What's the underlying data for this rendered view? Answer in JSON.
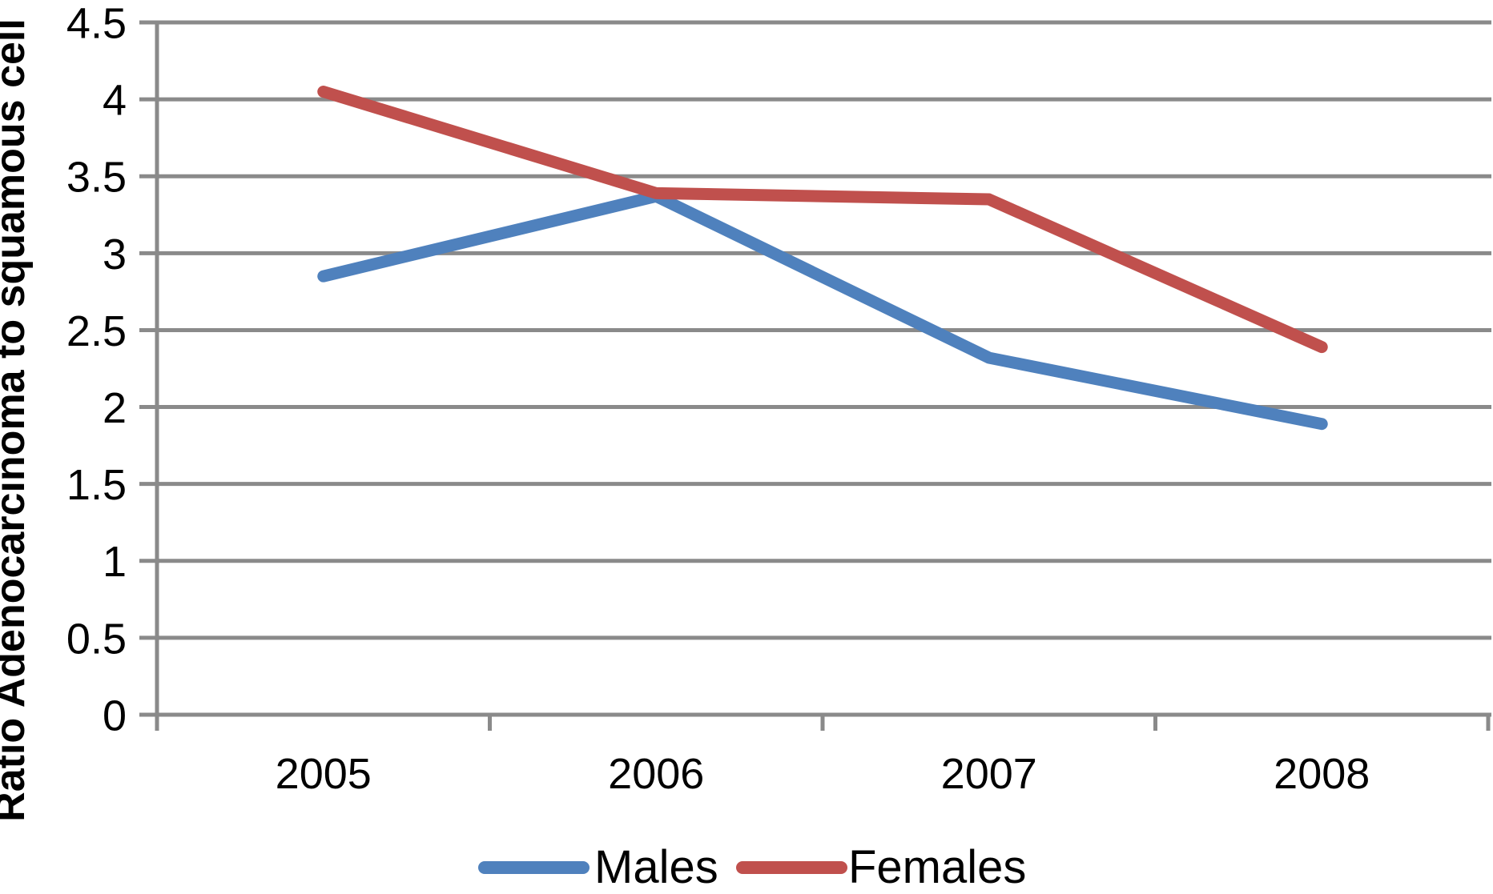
{
  "chart_data": {
    "type": "line",
    "title": "",
    "xlabel": "",
    "ylabel": "Ratio Adenocarcinoma to squamous cell",
    "categories": [
      "2005",
      "2006",
      "2007",
      "2008"
    ],
    "series": [
      {
        "name": "Males",
        "color": "#4F81BD",
        "values": [
          2.85,
          3.37,
          2.32,
          1.89
        ]
      },
      {
        "name": "Females",
        "color": "#C0504D",
        "values": [
          4.05,
          3.39,
          3.35,
          2.39
        ]
      }
    ],
    "ylim": [
      0,
      4.5
    ],
    "ytick_step": 0.5,
    "ytick_labels": [
      "0",
      "0.5",
      "1",
      "1.5",
      "2",
      "2.5",
      "3",
      "3.5",
      "4",
      "4.5"
    ],
    "grid": true,
    "legend_position": "bottom",
    "grid_color": "#8A8A8A",
    "axis_color": "#8A8A8A",
    "text_color": "#000000"
  }
}
